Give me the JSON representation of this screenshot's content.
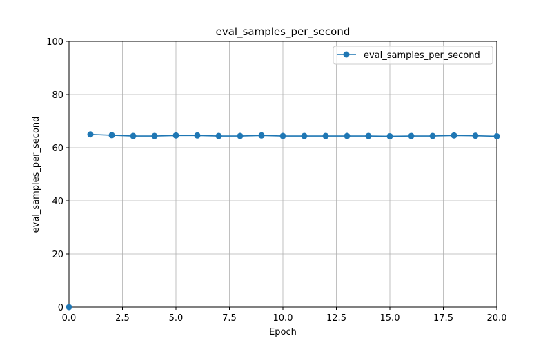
{
  "chart_data": {
    "type": "line",
    "title": "eval_samples_per_second",
    "xlabel": "Epoch",
    "ylabel": "eval_samples_per_second",
    "xlim": [
      0,
      20
    ],
    "ylim": [
      0,
      100
    ],
    "x_ticks": [
      "0.0",
      "2.5",
      "5.0",
      "7.5",
      "10.0",
      "12.5",
      "15.0",
      "17.5",
      "20.0"
    ],
    "y_ticks": [
      "0",
      "20",
      "40",
      "60",
      "80",
      "100"
    ],
    "grid": true,
    "legend_position": "top-right",
    "color": "#1f77b4",
    "series": [
      {
        "name": "eval_samples_per_second",
        "x": [
          0,
          1,
          2,
          3,
          4,
          5,
          6,
          7,
          8,
          9,
          10,
          11,
          12,
          13,
          14,
          15,
          16,
          17,
          18,
          19,
          20
        ],
        "y": [
          0,
          65.0,
          64.7,
          64.4,
          64.4,
          64.6,
          64.6,
          64.4,
          64.4,
          64.6,
          64.4,
          64.4,
          64.4,
          64.4,
          64.4,
          64.3,
          64.4,
          64.4,
          64.6,
          64.5,
          64.3
        ]
      }
    ]
  }
}
